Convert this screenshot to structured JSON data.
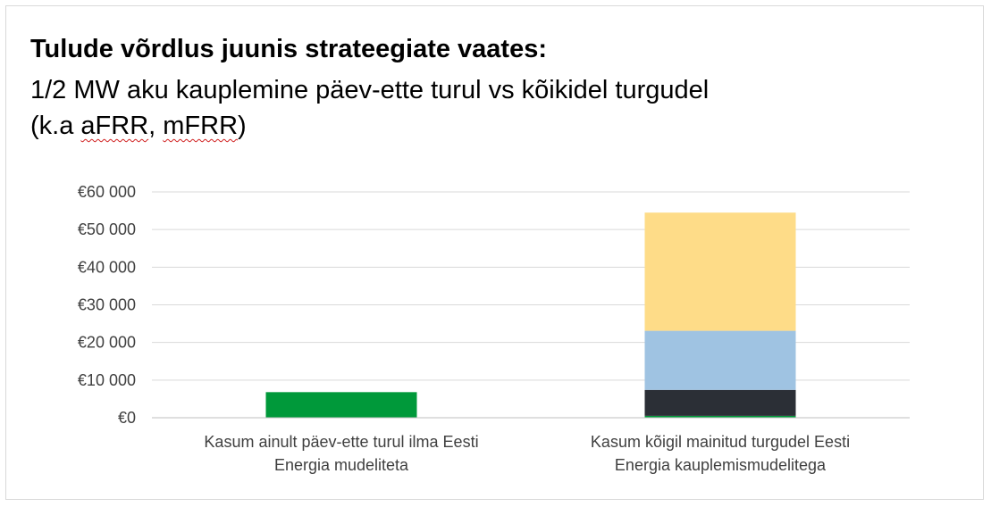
{
  "chart_data": {
    "type": "bar",
    "stacked": true,
    "title": "Tulude võrdlus juunis strateegiate vaates:",
    "subtitle_line1": "1/2 MW aku kauplemine päev-ette turul vs kõikidel turgudel",
    "subtitle_line2_pre": "(k.a ",
    "subtitle_line2_w1": "aFRR",
    "subtitle_line2_sep": ", ",
    "subtitle_line2_w2": "mFRR",
    "subtitle_line2_post": ")",
    "categories": [
      "Kasum ainult päev-ette turul ilma Eesti Energia mudeliteta",
      "Kasum kõigil mainitud turgudel Eesti Energia kauplemismudelitega"
    ],
    "category_lines": [
      [
        "Kasum ainult päev-ette turul ilma Eesti",
        "Energia mudeliteta"
      ],
      [
        "Kasum kõigil mainitud turgudel Eesti",
        "Energia kauplemismudelitega"
      ]
    ],
    "series": [
      {
        "color": "#00993a",
        "values": [
          6800,
          500
        ]
      },
      {
        "color": "#2b2f36",
        "values": [
          0,
          6900
        ]
      },
      {
        "color": "#9fc3e2",
        "values": [
          0,
          15700
        ]
      },
      {
        "color": "#fedc88",
        "values": [
          0,
          31400
        ]
      }
    ],
    "ylim": [
      0,
      60000
    ],
    "yticks": [
      0,
      10000,
      20000,
      30000,
      40000,
      50000,
      60000
    ],
    "ytick_labels": [
      "€0",
      "€10 000",
      "€20 000",
      "€30 000",
      "€40 000",
      "€50 000",
      "€60 000"
    ],
    "grid": true,
    "legend": "none"
  }
}
